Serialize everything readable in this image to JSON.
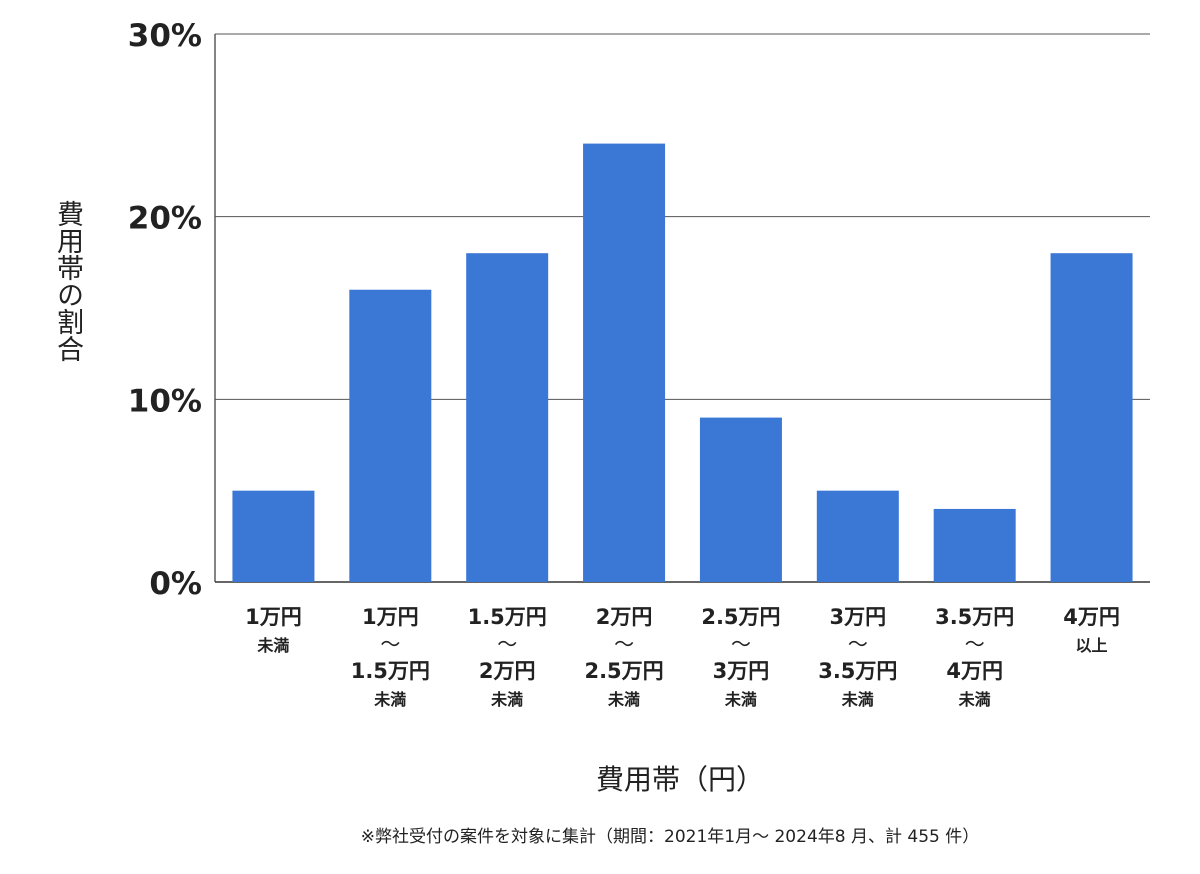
{
  "chart_data": {
    "type": "bar",
    "ylabel": "費用帯の割合",
    "xlabel": "費用帯（円）",
    "note": "※弊社受付の案件を対象に集計（期間：2021年1月～ 2024年8 月、計 455 件）",
    "ylim": [
      0,
      30
    ],
    "yticks": [
      "0%",
      "10%",
      "20%",
      "30%"
    ],
    "grid": true,
    "bar_color": "#3b78d6",
    "categories": [
      [
        "1万円",
        "未満"
      ],
      [
        "1万円",
        "～",
        "1.5万円",
        "未満"
      ],
      [
        "1.5万円",
        "～",
        "2万円",
        "未満"
      ],
      [
        "2万円",
        "～",
        "2.5万円",
        "未満"
      ],
      [
        "2.5万円",
        "～",
        "3万円",
        "未満"
      ],
      [
        "3万円",
        "～",
        "3.5万円",
        "未満"
      ],
      [
        "3.5万円",
        "～",
        "4万円",
        "未満"
      ],
      [
        "4万円",
        "以上"
      ]
    ],
    "values": [
      5,
      16,
      18,
      24,
      9,
      5,
      4,
      18
    ]
  }
}
